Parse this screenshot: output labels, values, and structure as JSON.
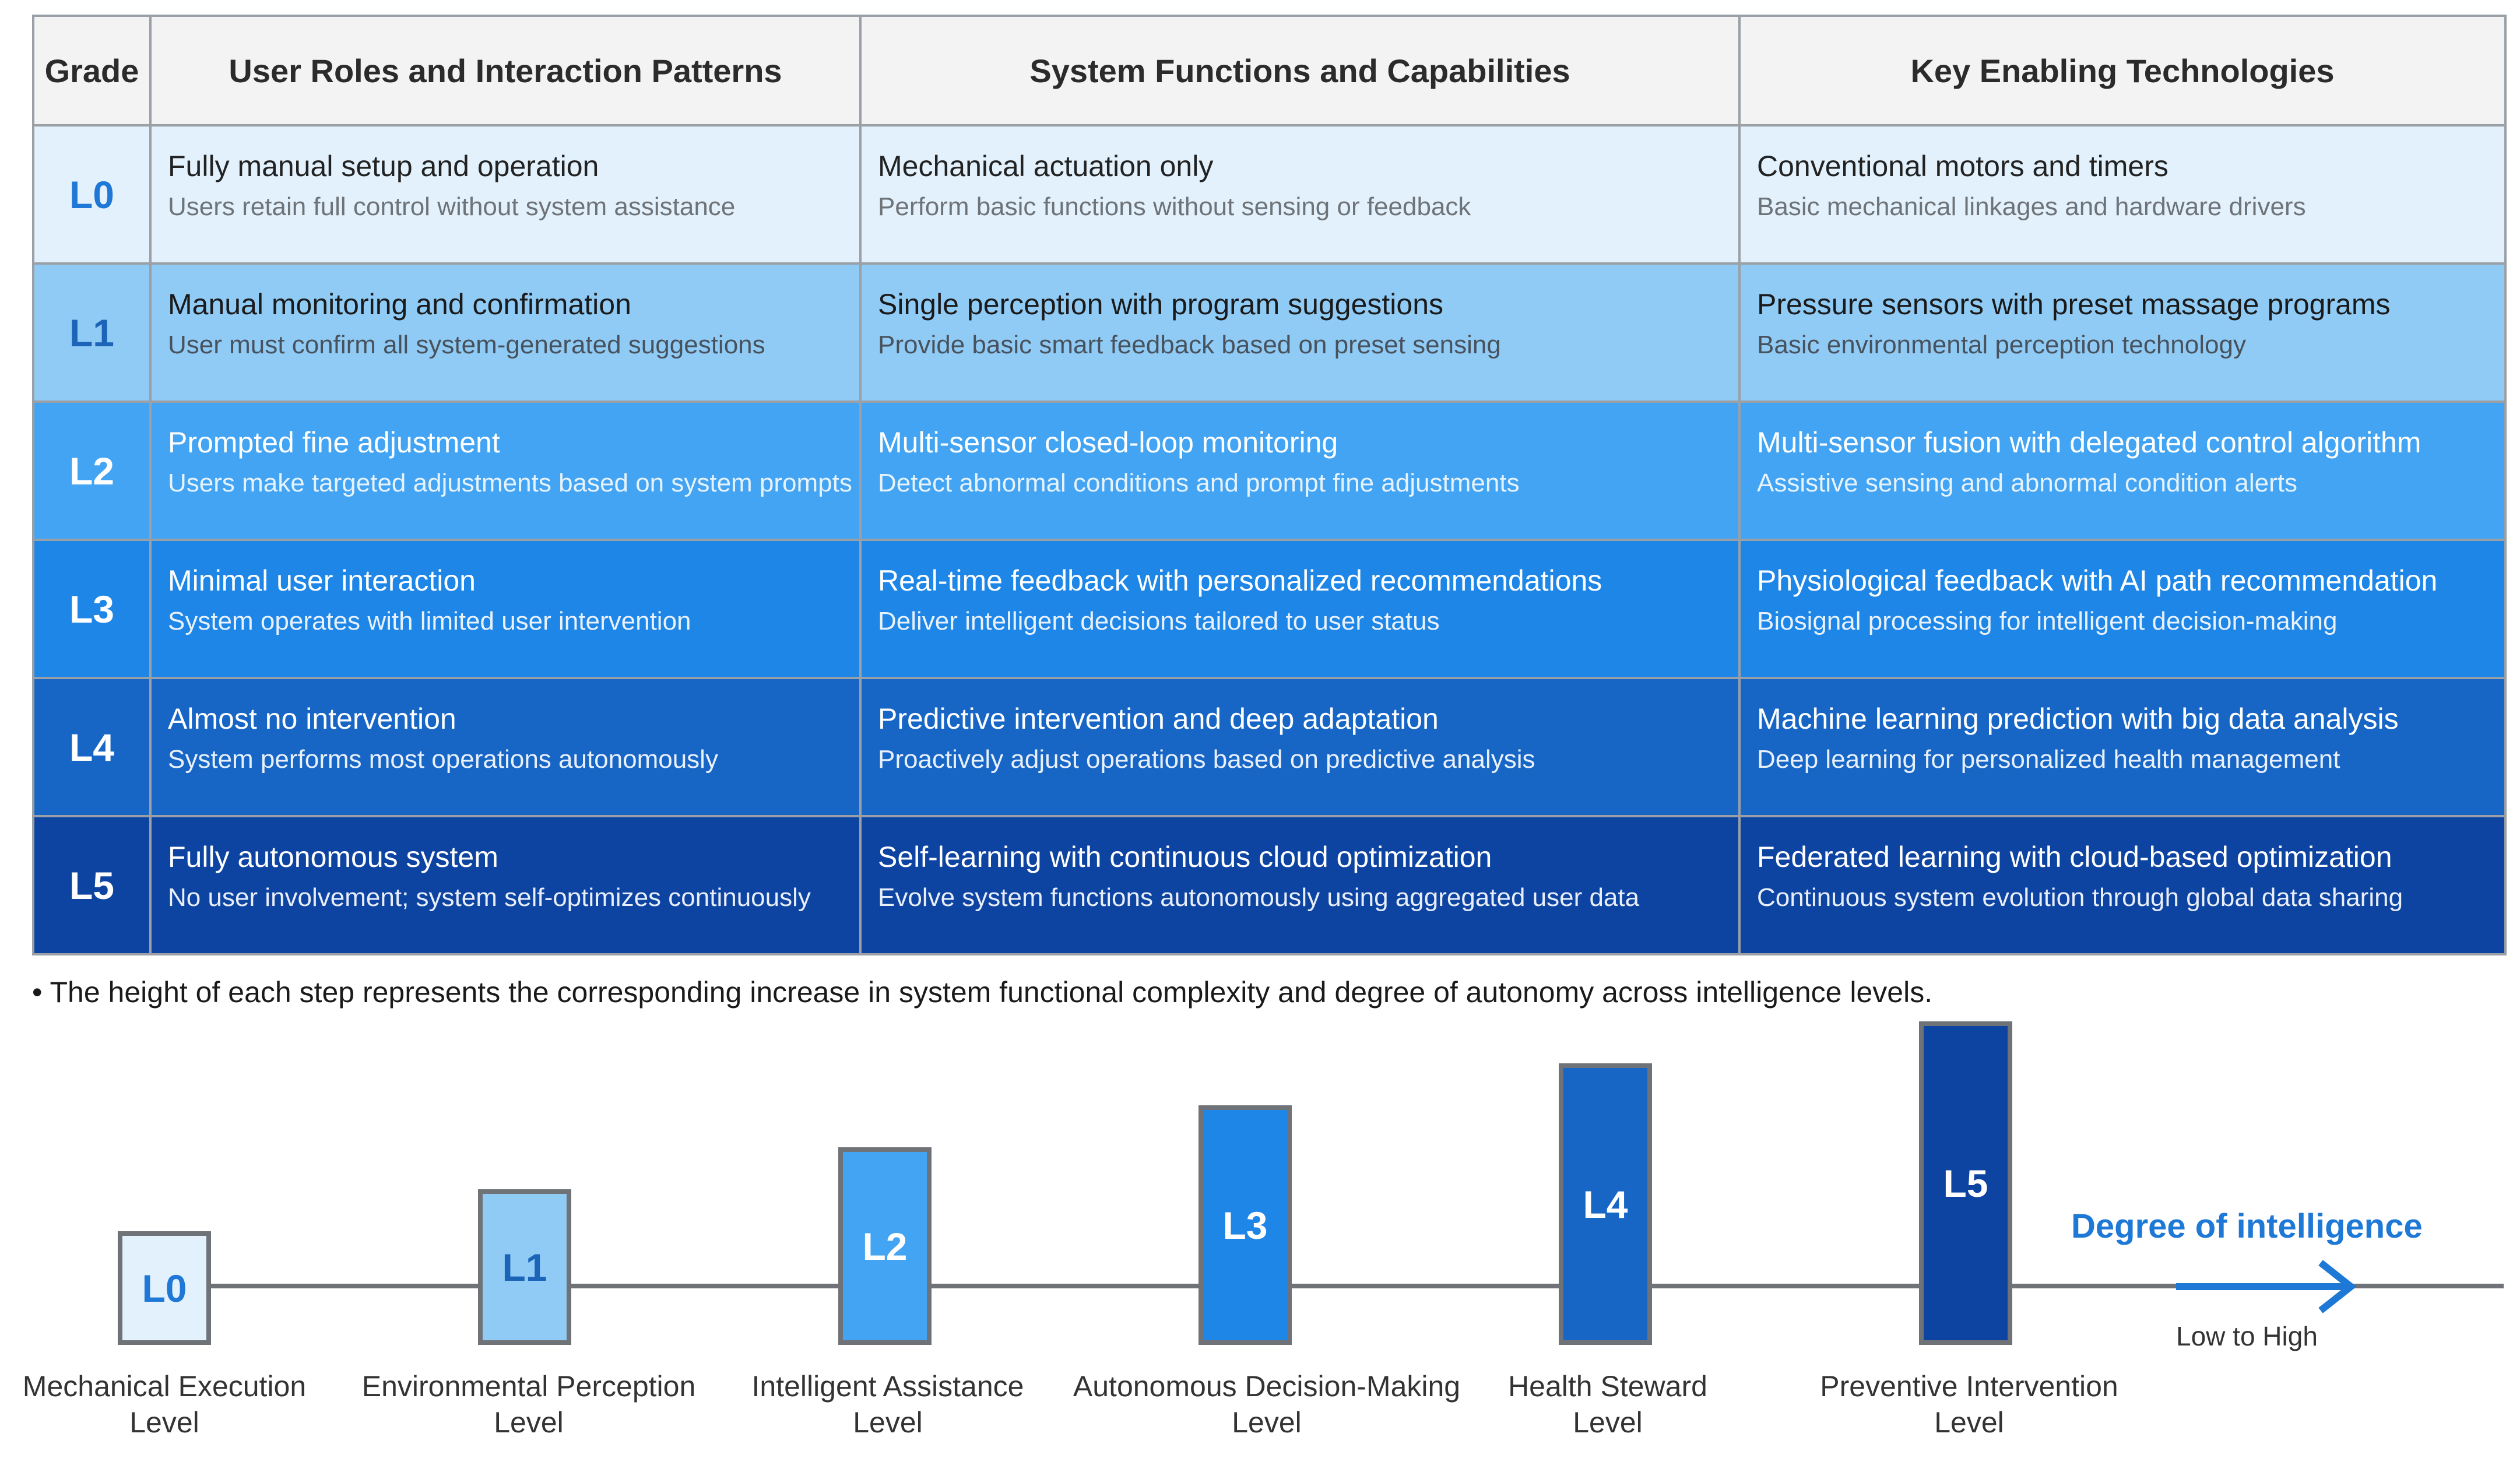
{
  "table": {
    "headers": [
      "Grade",
      "User Roles and Interaction Patterns",
      "System Functions and Capabilities",
      "Key Enabling Technologies"
    ],
    "rows": [
      {
        "grade": "L0",
        "user_title": "Fully manual setup and operation",
        "user_desc": "Users retain full control without system assistance",
        "func_title": "Mechanical actuation only",
        "func_desc": "Perform basic functions without sensing or feedback",
        "tech_title": "Conventional motors and timers",
        "tech_desc": "Basic mechanical linkages and hardware drivers"
      },
      {
        "grade": "L1",
        "user_title": "Manual monitoring and confirmation",
        "user_desc": "User must confirm all system-generated suggestions",
        "func_title": "Single perception with program suggestions",
        "func_desc": "Provide basic smart feedback based on preset sensing",
        "tech_title": "Pressure sensors with preset massage programs",
        "tech_desc": "Basic environmental perception technology"
      },
      {
        "grade": "L2",
        "user_title": "Prompted fine adjustment",
        "user_desc": "Users make targeted adjustments based on system prompts",
        "func_title": "Multi-sensor closed-loop monitoring",
        "func_desc": "Detect abnormal conditions and prompt fine adjustments",
        "tech_title": "Multi-sensor fusion with delegated control algorithm",
        "tech_desc": "Assistive sensing and abnormal condition alerts"
      },
      {
        "grade": "L3",
        "user_title": "Minimal user interaction",
        "user_desc": "System operates with limited user intervention",
        "func_title": "Real-time feedback with personalized recommendations",
        "func_desc": "Deliver intelligent decisions tailored to user status",
        "tech_title": "Physiological feedback with AI path recommendation",
        "tech_desc": "Biosignal processing for intelligent decision-making"
      },
      {
        "grade": "L4",
        "user_title": "Almost no intervention",
        "user_desc": "System performs most operations autonomously",
        "func_title": "Predictive intervention and deep adaptation",
        "func_desc": "Proactively adjust operations based on predictive analysis",
        "tech_title": "Machine learning prediction with big data analysis",
        "tech_desc": "Deep learning for personalized health management"
      },
      {
        "grade": "L5",
        "user_title": "Fully autonomous system",
        "user_desc": "No user involvement; system self-optimizes continuously",
        "func_title": "Self-learning with continuous cloud optimization",
        "func_desc": "Evolve system functions autonomously using aggregated user data",
        "tech_title": "Federated learning with cloud-based optimization",
        "tech_desc": "Continuous system evolution through global data sharing"
      }
    ]
  },
  "note": "• The height of each step represents the corresponding increase in system functional complexity and degree of autonomy across intelligence levels.",
  "steps": [
    {
      "label": "L0",
      "name_line1": "Mechanical Execution",
      "name_line2": "Level",
      "relative_height": 1
    },
    {
      "label": "L1",
      "name_line1": "Environmental Perception",
      "name_line2": "Level",
      "relative_height": 2
    },
    {
      "label": "L2",
      "name_line1": "Intelligent Assistance",
      "name_line2": "Level",
      "relative_height": 3
    },
    {
      "label": "L3",
      "name_line1": "Autonomous Decision-Making",
      "name_line2": "Level",
      "relative_height": 4
    },
    {
      "label": "L4",
      "name_line1": "Health Steward",
      "name_line2": "Level",
      "relative_height": 5
    },
    {
      "label": "L5",
      "name_line1": "Preventive Intervention",
      "name_line2": "Level",
      "relative_height": 6
    }
  ],
  "intelligence": {
    "title": "Degree of intelligence",
    "subtitle": "Low to High"
  },
  "colors": {
    "l0": "#e2f1fc",
    "l1": "#90cbf6",
    "l2": "#42a4f2",
    "l3": "#1e86e6",
    "l4": "#1766c6",
    "l5": "#0d43a1",
    "accent": "#1e78d6",
    "axis": "#6f7378"
  }
}
